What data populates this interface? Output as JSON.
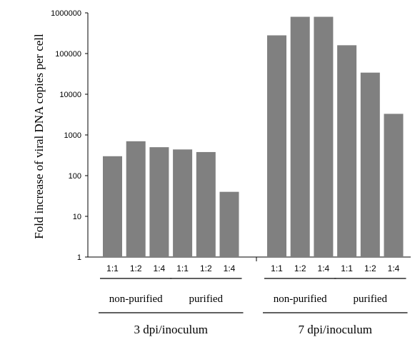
{
  "chart_data": {
    "type": "bar",
    "ylabel": "Fold increase of viral DNA copies per cell",
    "yscale": "log",
    "ylim": [
      1,
      1000000
    ],
    "yticks": [
      "1",
      "10",
      "100",
      "1000",
      "10000",
      "100000",
      "1000000"
    ],
    "grid": false,
    "panels": [
      {
        "label": "3 dpi/inoculum",
        "groups": [
          {
            "label": "non-purified",
            "categories": [
              "1:1",
              "1:2",
              "1:4"
            ],
            "values": [
              300,
              700,
              500
            ]
          },
          {
            "label": "purified",
            "categories": [
              "1:1",
              "1:2",
              "1:4"
            ],
            "values": [
              440,
              380,
              40
            ]
          }
        ]
      },
      {
        "label": "7 dpi/inoculum",
        "groups": [
          {
            "label": "non-purified",
            "categories": [
              "1:1",
              "1:2",
              "1:4"
            ],
            "values": [
              280000,
              800000,
              800000
            ]
          },
          {
            "label": "purified",
            "categories": [
              "1:1",
              "1:2",
              "1:4"
            ],
            "values": [
              160000,
              34000,
              3300
            ]
          }
        ]
      }
    ],
    "colors": {
      "bar": "#808080",
      "axis": "#000000"
    }
  }
}
